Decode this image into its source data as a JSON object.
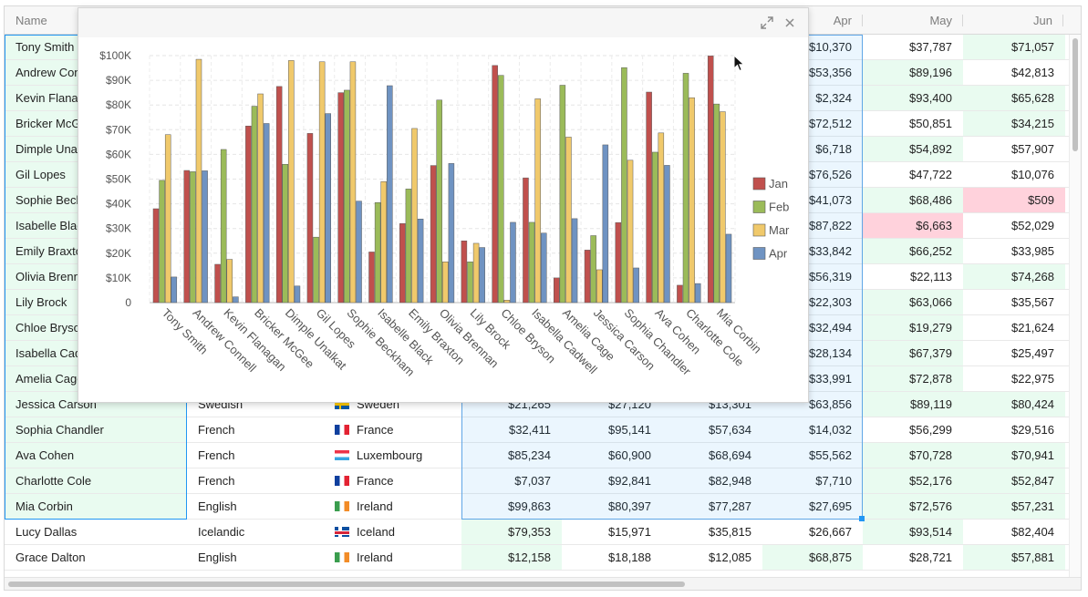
{
  "grid": {
    "columns": [
      {
        "id": "name",
        "label": "Name"
      },
      {
        "id": "apr",
        "label": "Apr"
      },
      {
        "id": "may",
        "label": "May"
      },
      {
        "id": "jun",
        "label": "Jun"
      }
    ],
    "hidden_rows": [
      {
        "name": "Tony Smith",
        "apr": "$10,370",
        "may": "$37,787",
        "jun": "$71,057"
      },
      {
        "name": "Andrew Connell",
        "apr": "$53,356",
        "may": "$89,196",
        "jun": "$42,813"
      },
      {
        "name": "Kevin Flanagan",
        "apr": "$2,324",
        "may": "$93,400",
        "jun": "$65,628"
      },
      {
        "name": "Bricker McGee",
        "apr": "$72,512",
        "may": "$50,851",
        "jun": "$34,215"
      },
      {
        "name": "Dimple Unalkat",
        "apr": "$6,718",
        "may": "$54,892",
        "jun": "$57,907"
      },
      {
        "name": "Gil Lopes",
        "apr": "$76,526",
        "may": "$47,722",
        "jun": "$10,076"
      },
      {
        "name": "Sophie Beckham",
        "apr": "$41,073",
        "may": "$68,486",
        "jun": "$509"
      },
      {
        "name": "Isabelle Black",
        "apr": "$87,822",
        "may": "$6,663",
        "jun": "$52,029"
      },
      {
        "name": "Emily Braxton",
        "apr": "$33,842",
        "may": "$66,252",
        "jun": "$33,985"
      },
      {
        "name": "Olivia Brennan",
        "apr": "$56,319",
        "may": "$22,113",
        "jun": "$74,268"
      },
      {
        "name": "Lily Brock",
        "apr": "$22,303",
        "may": "$63,066",
        "jun": "$35,567"
      },
      {
        "name": "Chloe Bryson",
        "apr": "$32,494",
        "may": "$19,279",
        "jun": "$21,624"
      },
      {
        "name": "Isabella Cadwell",
        "apr": "$28,134",
        "may": "$67,379",
        "jun": "$25,497"
      },
      {
        "name": "Amelia Cage",
        "apr": "$33,991",
        "may": "$72,878",
        "jun": "$22,975"
      }
    ],
    "visible_rows": [
      {
        "name": "Jessica Carson",
        "language": "Swedish",
        "country": "Sweden",
        "flag": "flag-se",
        "jan": "$21,265",
        "feb": "$27,120",
        "mar": "$13,301",
        "apr": "$63,856",
        "may": "$89,119",
        "jun": "$80,424"
      },
      {
        "name": "Sophia Chandler",
        "language": "French",
        "country": "France",
        "flag": "flag-fr",
        "jan": "$32,411",
        "feb": "$95,141",
        "mar": "$57,634",
        "apr": "$14,032",
        "may": "$56,299",
        "jun": "$29,516"
      },
      {
        "name": "Ava Cohen",
        "language": "French",
        "country": "Luxembourg",
        "flag": "flag-lu",
        "jan": "$85,234",
        "feb": "$60,900",
        "mar": "$68,694",
        "apr": "$55,562",
        "may": "$70,728",
        "jun": "$70,941"
      },
      {
        "name": "Charlotte Cole",
        "language": "French",
        "country": "France",
        "flag": "flag-fr",
        "jan": "$7,037",
        "feb": "$92,841",
        "mar": "$82,948",
        "apr": "$7,710",
        "may": "$52,176",
        "jun": "$52,847"
      },
      {
        "name": "Mia Corbin",
        "language": "English",
        "country": "Ireland",
        "flag": "flag-ie",
        "jan": "$99,863",
        "feb": "$80,397",
        "mar": "$77,287",
        "apr": "$27,695",
        "may": "$72,576",
        "jun": "$57,231"
      },
      {
        "name": "Lucy Dallas",
        "language": "Icelandic",
        "country": "Iceland",
        "flag": "flag-is",
        "jan": "$79,353",
        "feb": "$15,971",
        "mar": "$35,815",
        "apr": "$26,667",
        "may": "$93,514",
        "jun": "$82,404"
      },
      {
        "name": "Grace Dalton",
        "language": "English",
        "country": "Ireland",
        "flag": "flag-ie",
        "jan": "$12,158",
        "feb": "$18,188",
        "mar": "$12,085",
        "apr": "$68,875",
        "may": "$28,721",
        "jun": "$57,881"
      }
    ]
  },
  "dialog": {
    "maximize_icon": "expand-icon",
    "close_icon": "close-icon"
  },
  "chart_data": {
    "type": "bar",
    "title": "",
    "xlabel": "",
    "ylabel": "",
    "ylim": [
      0,
      100000
    ],
    "yticks": [
      "0",
      "$10K",
      "$20K",
      "$30K",
      "$40K",
      "$50K",
      "$60K",
      "$70K",
      "$80K",
      "$90K",
      "$100K"
    ],
    "legend_position": "right",
    "categories": [
      "Tony Smith",
      "Andrew Connell",
      "Kevin Flanagan",
      "Bricker McGee",
      "Dimple Unalkat",
      "Gil Lopes",
      "Sophie Beckham",
      "Isabelle Black",
      "Emily Braxton",
      "Olivia Brennan",
      "Lily Brock",
      "Chloe Bryson",
      "Isabella Cadwell",
      "Amelia Cage",
      "Jessica Carson",
      "Sophia Chandler",
      "Ava Cohen",
      "Charlotte Cole",
      "Mia Corbin"
    ],
    "series": [
      {
        "name": "Jan",
        "color": "#c0504d",
        "values": [
          38000,
          53500,
          15500,
          71500,
          87500,
          68500,
          85000,
          20500,
          32000,
          55500,
          25000,
          96000,
          50500,
          10000,
          21265,
          32411,
          85234,
          7037,
          99863
        ]
      },
      {
        "name": "Feb",
        "color": "#9bbb59",
        "values": [
          49500,
          53000,
          62000,
          79500,
          56000,
          26500,
          86000,
          40500,
          46000,
          82000,
          16500,
          92000,
          32500,
          88000,
          27120,
          95141,
          60900,
          92841,
          80397
        ]
      },
      {
        "name": "Mar",
        "color": "#f0c96b",
        "values": [
          68000,
          98500,
          17500,
          84500,
          98000,
          97500,
          97500,
          49000,
          70500,
          16500,
          24000,
          1000,
          82500,
          67000,
          13301,
          57634,
          68694,
          82948,
          77287
        ]
      },
      {
        "name": "Apr",
        "color": "#6f93c2",
        "values": [
          10370,
          53356,
          2324,
          72512,
          6718,
          76526,
          41073,
          87822,
          33842,
          56319,
          22303,
          32494,
          28134,
          33991,
          63856,
          14032,
          55562,
          7710,
          27695
        ]
      }
    ]
  }
}
